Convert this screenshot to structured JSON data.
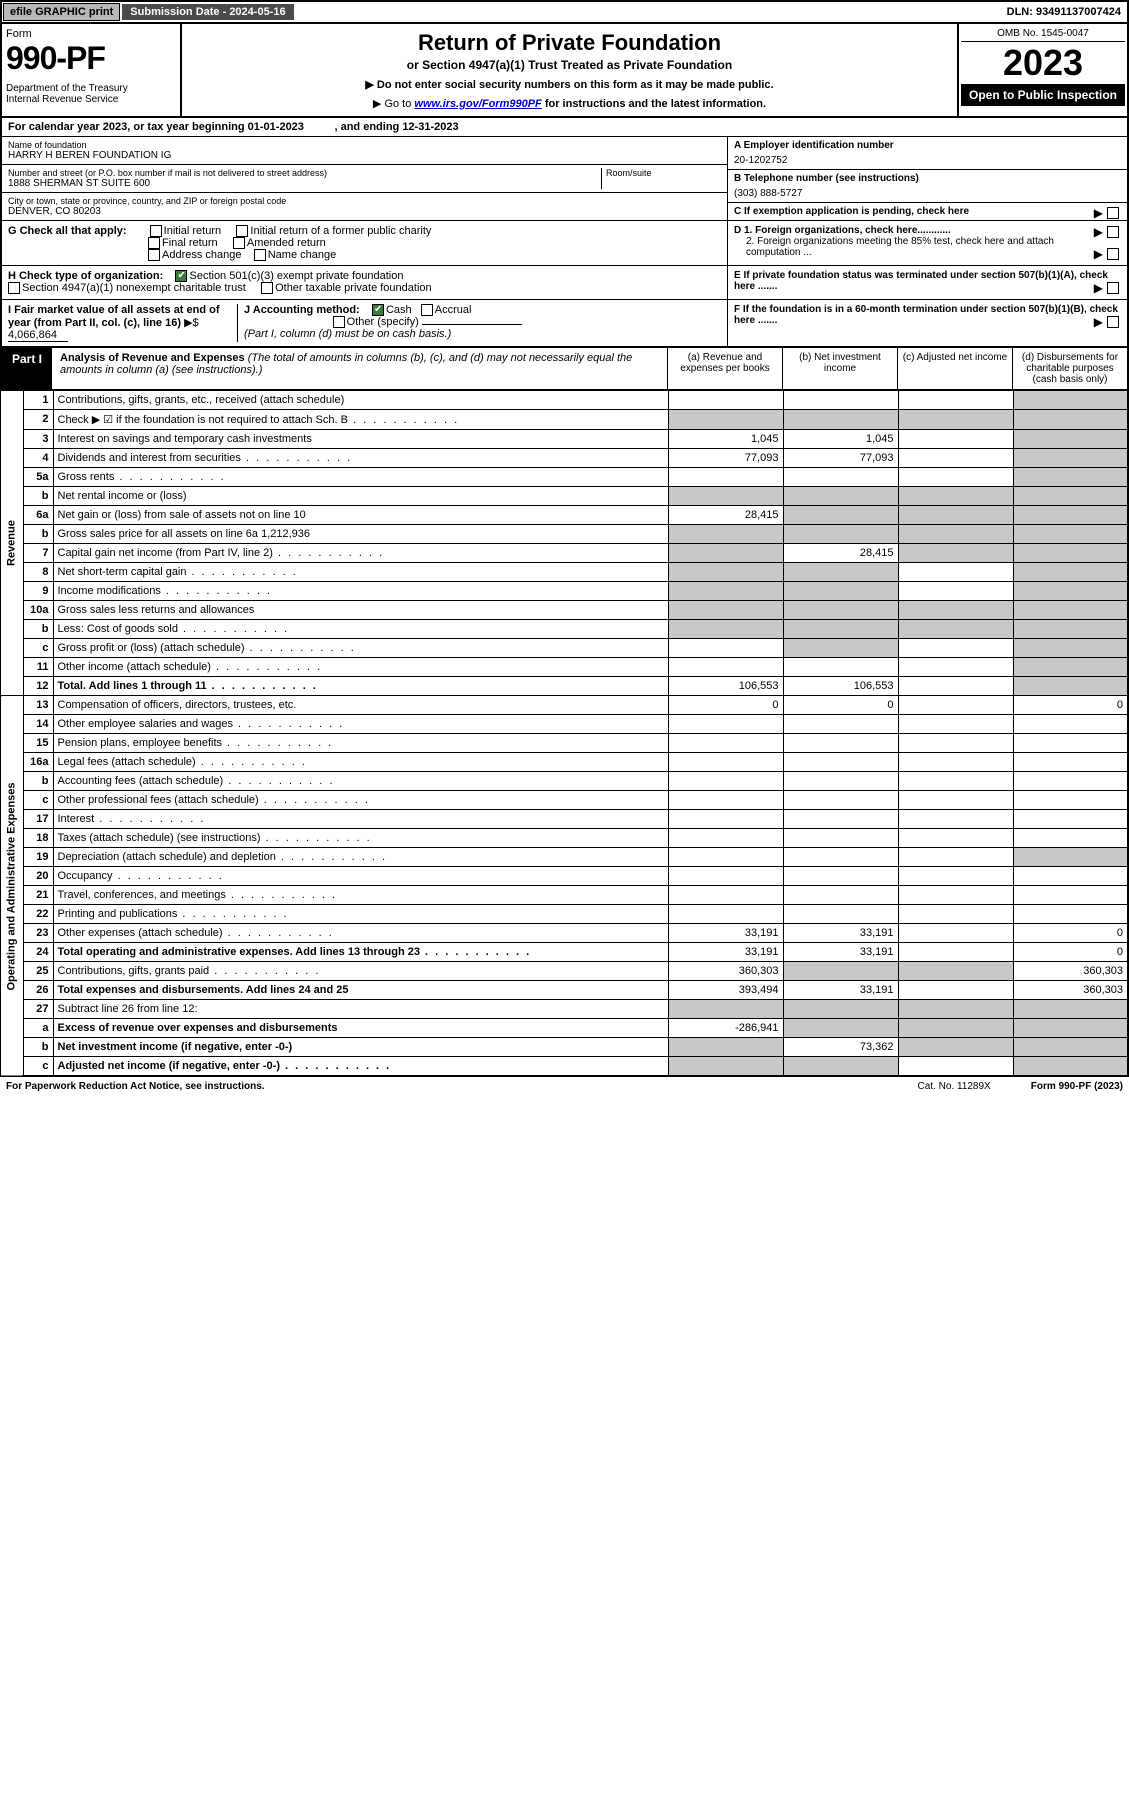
{
  "topbar": {
    "efile": "efile GRAPHIC print",
    "subdate_label": "Submission Date - 2024-05-16",
    "dln": "DLN: 93491137007424"
  },
  "header": {
    "form_label": "Form",
    "form_number": "990-PF",
    "dept": "Department of the Treasury\nInternal Revenue Service",
    "title": "Return of Private Foundation",
    "subtitle": "or Section 4947(a)(1) Trust Treated as Private Foundation",
    "instr1": "▶ Do not enter social security numbers on this form as it may be made public.",
    "instr2_pre": "▶ Go to ",
    "instr2_link": "www.irs.gov/Form990PF",
    "instr2_post": " for instructions and the latest information.",
    "omb": "OMB No. 1545-0047",
    "year": "2023",
    "open": "Open to Public Inspection"
  },
  "calyear": "For calendar year 2023, or tax year beginning 01-01-2023          , and ending 12-31-2023",
  "foundation": {
    "name_label": "Name of foundation",
    "name": "HARRY H BEREN FOUNDATION IG",
    "addr_label": "Number and street (or P.O. box number if mail is not delivered to street address)",
    "addr": "1888 SHERMAN ST SUITE 600",
    "room_label": "Room/suite",
    "city_label": "City or town, state or province, country, and ZIP or foreign postal code",
    "city": "DENVER, CO  80203",
    "ein_label": "A Employer identification number",
    "ein": "20-1202752",
    "phone_label": "B Telephone number (see instructions)",
    "phone": "(303) 888-5727",
    "c_label": "C If exemption application is pending, check here"
  },
  "g": {
    "label": "G Check all that apply:",
    "opts": [
      "Initial return",
      "Initial return of a former public charity",
      "Final return",
      "Amended return",
      "Address change",
      "Name change"
    ]
  },
  "d": {
    "d1": "D 1. Foreign organizations, check here............",
    "d2": "2. Foreign organizations meeting the 85% test, check here and attach computation ...",
    "e": "E  If private foundation status was terminated under section 507(b)(1)(A), check here .......",
    "f": "F  If the foundation is in a 60-month termination under section 507(b)(1)(B), check here ......."
  },
  "h": {
    "label": "H Check type of organization:",
    "opt1": "Section 501(c)(3) exempt private foundation",
    "opt2": "Section 4947(a)(1) nonexempt charitable trust",
    "opt3": "Other taxable private foundation"
  },
  "i": {
    "label": "I Fair market value of all assets at end of year (from Part II, col. (c), line 16)",
    "arrow": "▶$",
    "value": "4,066,864"
  },
  "j": {
    "label": "J Accounting method:",
    "cash": "Cash",
    "accrual": "Accrual",
    "other": "Other (specify)",
    "note": "(Part I, column (d) must be on cash basis.)"
  },
  "part1": {
    "label": "Part I",
    "title": "Analysis of Revenue and Expenses",
    "title_note": "(The total of amounts in columns (b), (c), and (d) may not necessarily equal the amounts in column (a) (see instructions).)",
    "cols": {
      "a": "(a)  Revenue and expenses per books",
      "b": "(b)  Net investment income",
      "c": "(c)  Adjusted net income",
      "d": "(d)  Disbursements for charitable purposes (cash basis only)"
    }
  },
  "sides": {
    "revenue": "Revenue",
    "expenses": "Operating and Administrative Expenses"
  },
  "rows": [
    {
      "n": "1",
      "d": "Contributions, gifts, grants, etc., received (attach schedule)",
      "a": "",
      "b": "",
      "c": "",
      "dd": "",
      "greyD": true
    },
    {
      "n": "2",
      "d": "Check ▶ ☑ if the foundation is not required to attach Sch. B",
      "dots": true,
      "a": "",
      "b": "",
      "c": "",
      "dd": "",
      "greyAll": true
    },
    {
      "n": "3",
      "d": "Interest on savings and temporary cash investments",
      "a": "1,045",
      "b": "1,045",
      "c": "",
      "dd": "",
      "greyD": true
    },
    {
      "n": "4",
      "d": "Dividends and interest from securities",
      "dots": true,
      "a": "77,093",
      "b": "77,093",
      "c": "",
      "dd": "",
      "greyD": true
    },
    {
      "n": "5a",
      "d": "Gross rents",
      "dots": true,
      "a": "",
      "b": "",
      "c": "",
      "dd": "",
      "greyD": true
    },
    {
      "n": "b",
      "d": "Net rental income or (loss)",
      "a": "",
      "b": "",
      "c": "",
      "dd": "",
      "greyAll": true
    },
    {
      "n": "6a",
      "d": "Net gain or (loss) from sale of assets not on line 10",
      "a": "28,415",
      "b": "",
      "c": "",
      "dd": "",
      "greyBCD": true
    },
    {
      "n": "b",
      "d": "Gross sales price for all assets on line 6a          1,212,936",
      "a": "",
      "b": "",
      "c": "",
      "dd": "",
      "greyAll": true
    },
    {
      "n": "7",
      "d": "Capital gain net income (from Part IV, line 2)",
      "dots": true,
      "a": "",
      "b": "28,415",
      "c": "",
      "dd": "",
      "greyA": true,
      "greyCD": true
    },
    {
      "n": "8",
      "d": "Net short-term capital gain",
      "dots": true,
      "a": "",
      "b": "",
      "c": "",
      "dd": "",
      "greyAB": true,
      "greyD": true
    },
    {
      "n": "9",
      "d": "Income modifications",
      "dots": true,
      "a": "",
      "b": "",
      "c": "",
      "dd": "",
      "greyAB": true,
      "greyD": true
    },
    {
      "n": "10a",
      "d": "Gross sales less returns and allowances",
      "a": "",
      "b": "",
      "c": "",
      "dd": "",
      "greyAll": true
    },
    {
      "n": "b",
      "d": "Less: Cost of goods sold",
      "dots": true,
      "a": "",
      "b": "",
      "c": "",
      "dd": "",
      "greyAll": true
    },
    {
      "n": "c",
      "d": "Gross profit or (loss) (attach schedule)",
      "dots": true,
      "a": "",
      "b": "",
      "c": "",
      "dd": "",
      "greyB": true,
      "greyD": true
    },
    {
      "n": "11",
      "d": "Other income (attach schedule)",
      "dots": true,
      "a": "",
      "b": "",
      "c": "",
      "dd": "",
      "greyD": true
    },
    {
      "n": "12",
      "d": "Total. Add lines 1 through 11",
      "dots": true,
      "bold": true,
      "a": "106,553",
      "b": "106,553",
      "c": "",
      "dd": "",
      "greyD": true
    },
    {
      "n": "13",
      "d": "Compensation of officers, directors, trustees, etc.",
      "a": "0",
      "b": "0",
      "c": "",
      "dd": "0"
    },
    {
      "n": "14",
      "d": "Other employee salaries and wages",
      "dots": true,
      "a": "",
      "b": "",
      "c": "",
      "dd": ""
    },
    {
      "n": "15",
      "d": "Pension plans, employee benefits",
      "dots": true,
      "a": "",
      "b": "",
      "c": "",
      "dd": ""
    },
    {
      "n": "16a",
      "d": "Legal fees (attach schedule)",
      "dots": true,
      "a": "",
      "b": "",
      "c": "",
      "dd": ""
    },
    {
      "n": "b",
      "d": "Accounting fees (attach schedule)",
      "dots": true,
      "a": "",
      "b": "",
      "c": "",
      "dd": ""
    },
    {
      "n": "c",
      "d": "Other professional fees (attach schedule)",
      "dots": true,
      "a": "",
      "b": "",
      "c": "",
      "dd": ""
    },
    {
      "n": "17",
      "d": "Interest",
      "dots": true,
      "a": "",
      "b": "",
      "c": "",
      "dd": ""
    },
    {
      "n": "18",
      "d": "Taxes (attach schedule) (see instructions)",
      "dots": true,
      "a": "",
      "b": "",
      "c": "",
      "dd": ""
    },
    {
      "n": "19",
      "d": "Depreciation (attach schedule) and depletion",
      "dots": true,
      "a": "",
      "b": "",
      "c": "",
      "dd": "",
      "greyD": true
    },
    {
      "n": "20",
      "d": "Occupancy",
      "dots": true,
      "a": "",
      "b": "",
      "c": "",
      "dd": ""
    },
    {
      "n": "21",
      "d": "Travel, conferences, and meetings",
      "dots": true,
      "a": "",
      "b": "",
      "c": "",
      "dd": ""
    },
    {
      "n": "22",
      "d": "Printing and publications",
      "dots": true,
      "a": "",
      "b": "",
      "c": "",
      "dd": ""
    },
    {
      "n": "23",
      "d": "Other expenses (attach schedule)",
      "dots": true,
      "a": "33,191",
      "b": "33,191",
      "c": "",
      "dd": "0"
    },
    {
      "n": "24",
      "d": "Total operating and administrative expenses. Add lines 13 through 23",
      "dots": true,
      "bold": true,
      "a": "33,191",
      "b": "33,191",
      "c": "",
      "dd": "0"
    },
    {
      "n": "25",
      "d": "Contributions, gifts, grants paid",
      "dots": true,
      "a": "360,303",
      "b": "",
      "c": "",
      "dd": "360,303",
      "greyBC": true
    },
    {
      "n": "26",
      "d": "Total expenses and disbursements. Add lines 24 and 25",
      "bold": true,
      "a": "393,494",
      "b": "33,191",
      "c": "",
      "dd": "360,303"
    },
    {
      "n": "27",
      "d": "Subtract line 26 from line 12:",
      "a": "",
      "b": "",
      "c": "",
      "dd": "",
      "greyAll": true
    },
    {
      "n": "a",
      "d": "Excess of revenue over expenses and disbursements",
      "bold": true,
      "a": "-286,941",
      "b": "",
      "c": "",
      "dd": "",
      "greyBCD": true
    },
    {
      "n": "b",
      "d": "Net investment income (if negative, enter -0-)",
      "bold": true,
      "a": "",
      "b": "73,362",
      "c": "",
      "dd": "",
      "greyA": true,
      "greyCD": true
    },
    {
      "n": "c",
      "d": "Adjusted net income (if negative, enter -0-)",
      "dots": true,
      "bold": true,
      "a": "",
      "b": "",
      "c": "",
      "dd": "",
      "greyAB": true,
      "greyD": true
    }
  ],
  "footer": {
    "left": "For Paperwork Reduction Act Notice, see instructions.",
    "cat": "Cat. No. 11289X",
    "form": "Form 990-PF (2023)"
  },
  "colors": {
    "grey": "#c8c8c8",
    "darkbar": "#4a4a4a",
    "btn": "#b8b8b8",
    "check": "#3a7a3a",
    "link": "#0000cc"
  }
}
